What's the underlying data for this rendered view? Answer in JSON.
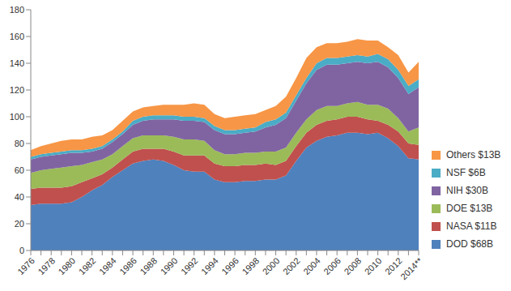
{
  "chart_data": {
    "type": "area",
    "stacked": true,
    "grid": false,
    "legend": "right",
    "categories": [
      "1976",
      null,
      "1978",
      null,
      "1980",
      null,
      "1982",
      null,
      "1984",
      null,
      "1986",
      null,
      "1988",
      null,
      "1990",
      null,
      "1992",
      null,
      "1994",
      null,
      "1996",
      null,
      "1998",
      null,
      "2000",
      null,
      "2002",
      null,
      "2004",
      null,
      "2006",
      null,
      "2008",
      null,
      "2010",
      null,
      "2012",
      null,
      "2014**"
    ],
    "ylim": [
      0,
      180
    ],
    "yticks": [
      0,
      20,
      40,
      60,
      80,
      100,
      120,
      140,
      160,
      180
    ],
    "series": [
      {
        "name": "DOD $68B",
        "color": "#4f81bd",
        "values": [
          34,
          35,
          35,
          35,
          36,
          40,
          45,
          49,
          55,
          60,
          65,
          67,
          68,
          67,
          64,
          60,
          59,
          59,
          53,
          51,
          51,
          52,
          52,
          53,
          53,
          56,
          67,
          77,
          82,
          85,
          86,
          88,
          88,
          87,
          88,
          84,
          78,
          69,
          68
        ]
      },
      {
        "name": "NASA $11B",
        "color": "#c0504d",
        "values": [
          12,
          12,
          12,
          12,
          12,
          11,
          9,
          8,
          7,
          8,
          9,
          9,
          8,
          9,
          10,
          11,
          12,
          12,
          12,
          12,
          12,
          12,
          12,
          12,
          11,
          11,
          11,
          11,
          12,
          12,
          12,
          12,
          12,
          11,
          9,
          10,
          11,
          11,
          11
        ]
      },
      {
        "name": "DOE $13B",
        "color": "#9bbb59",
        "values": [
          12,
          13,
          14,
          15,
          15,
          13,
          12,
          11,
          10,
          10,
          10,
          10,
          10,
          10,
          11,
          12,
          12,
          11,
          10,
          9,
          9,
          9,
          9,
          9,
          10,
          10,
          10,
          10,
          11,
          11,
          10,
          10,
          11,
          11,
          12,
          12,
          10,
          9,
          13
        ]
      },
      {
        "name": "NIH $30B",
        "color": "#8064a2",
        "values": [
          10,
          10,
          10,
          10,
          10,
          9,
          8,
          8,
          9,
          9,
          10,
          11,
          12,
          12,
          13,
          14,
          14,
          14,
          15,
          15,
          15,
          15,
          16,
          18,
          20,
          22,
          24,
          27,
          30,
          31,
          31,
          30,
          30,
          31,
          32,
          31,
          30,
          28,
          30
        ]
      },
      {
        "name": "NSF $6B",
        "color": "#4bacc6",
        "values": [
          2,
          2,
          2,
          2,
          2,
          2,
          2,
          2,
          2,
          2,
          3,
          3,
          3,
          3,
          3,
          3,
          3,
          3,
          3,
          3,
          3,
          3,
          3,
          4,
          4,
          4,
          4,
          4,
          5,
          5,
          5,
          5,
          5,
          5,
          6,
          6,
          6,
          6,
          6
        ]
      },
      {
        "name": "Others $13B",
        "color": "#f79646",
        "values": [
          5,
          6,
          7,
          8,
          8,
          8,
          9,
          8,
          7,
          8,
          7,
          7,
          7,
          8,
          8,
          9,
          10,
          10,
          9,
          9,
          10,
          10,
          10,
          9,
          10,
          12,
          13,
          15,
          12,
          11,
          11,
          11,
          12,
          12,
          10,
          9,
          11,
          10,
          13
        ]
      }
    ]
  }
}
